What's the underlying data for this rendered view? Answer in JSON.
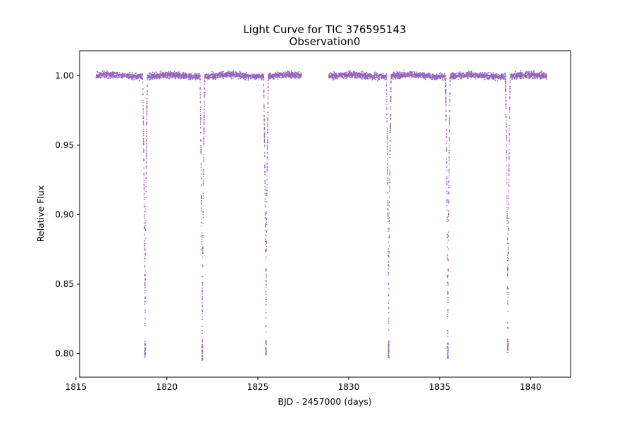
{
  "chart_data": {
    "type": "scatter",
    "title": "Light Curve for TIC 376595143",
    "subtitle": "Observation0",
    "xlabel": "BJD - 2457000 (days)",
    "ylabel": "Relative Flux",
    "xlim": [
      1815.2,
      1842.2
    ],
    "ylim": [
      0.783,
      1.018
    ],
    "x_ticks": [
      1815,
      1820,
      1825,
      1830,
      1835,
      1840
    ],
    "y_ticks": [
      0.8,
      0.85,
      0.9,
      0.95,
      1.0
    ],
    "y_tick_labels": [
      "0.80",
      "0.85",
      "0.90",
      "0.95",
      "1.00"
    ],
    "grid": false,
    "marker_color": "#9467bd",
    "series": [
      {
        "segments": [
          {
            "x_start": 1816.1,
            "x_end": 1827.4
          },
          {
            "x_start": 1828.9,
            "x_end": 1840.9
          }
        ],
        "baseline_flux": 1.0,
        "eclipses": [
          {
            "center": 1818.8,
            "min_flux": 0.796
          },
          {
            "center": 1821.95,
            "min_flux": 0.795
          },
          {
            "center": 1825.45,
            "min_flux": 0.798
          },
          {
            "center": 1832.2,
            "min_flux": 0.797
          },
          {
            "center": 1835.45,
            "min_flux": 0.796
          },
          {
            "center": 1838.75,
            "min_flux": 0.799
          }
        ]
      }
    ]
  }
}
